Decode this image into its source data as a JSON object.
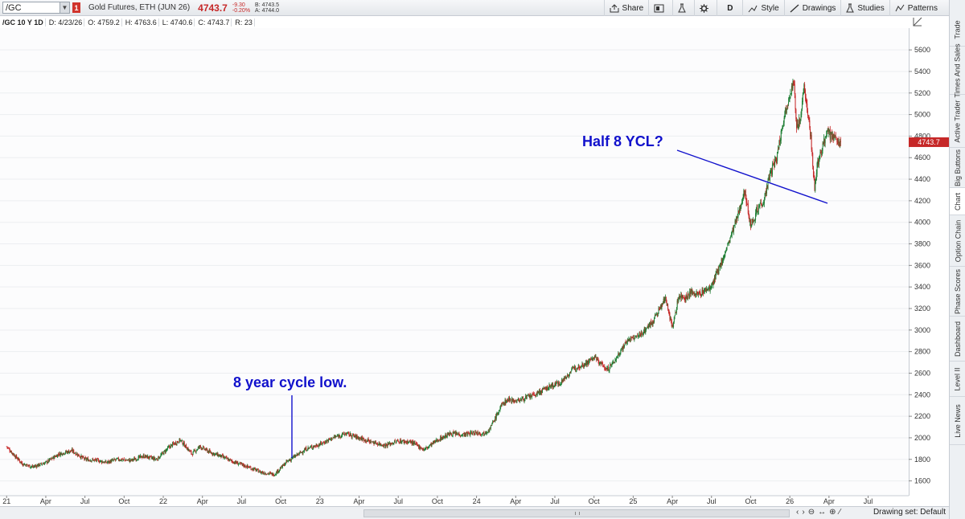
{
  "toolbar": {
    "symbol": "/GC",
    "link_badge": "1",
    "description": "Gold Futures, ETH (JUN 26)",
    "last_price": "4743.7",
    "net_change": "-9.30",
    "pct_change": "-0.20%",
    "bid": "B: 4743.5",
    "ask": "A: 4744.0",
    "buttons": {
      "share": "Share",
      "aggregation": "D",
      "style": "Style",
      "drawings": "Drawings",
      "studies": "Studies",
      "patterns": "Patterns"
    }
  },
  "info": {
    "label": "/GC 10 Y 1D",
    "date": "D: 4/23/26",
    "open": "O: 4759.2",
    "high": "H: 4763.6",
    "low": "L: 4740.6",
    "close": "C: 4743.7",
    "range": "R: 23"
  },
  "right_tabs": [
    "Trade",
    "Times And Sales",
    "Active Trader",
    "Big Buttons",
    "Chart",
    "Option Chain",
    "Phase Scores",
    "Dashboard",
    "Level II",
    "Live News"
  ],
  "active_tab": "Chart",
  "bottom": {
    "drawing_set": "Drawing set: Default"
  },
  "colors": {
    "up_candle": "#1e7e34",
    "down_candle": "#c62828",
    "annotation": "#1111cc",
    "grid": "#eceef1"
  },
  "chart_data": {
    "type": "candlestick",
    "title": "",
    "xlabel": "",
    "ylabel": "",
    "ylim": [
      1500,
      5750
    ],
    "y_ticks": [
      1600,
      1800,
      2000,
      2200,
      2400,
      2600,
      2800,
      3000,
      3200,
      3400,
      3600,
      3800,
      4000,
      4200,
      4400,
      4600,
      4800,
      5000,
      5200,
      5400,
      5600
    ],
    "x_tick_labels": [
      "21",
      "Apr",
      "Jul",
      "Oct",
      "22",
      "Apr",
      "Jul",
      "Oct",
      "23",
      "Apr",
      "Jul",
      "Oct",
      "24",
      "Apr",
      "Jul",
      "Oct",
      "25",
      "Apr",
      "Jul",
      "Oct",
      "26",
      "Apr",
      "Jul"
    ],
    "x_ticks_month_index": [
      0,
      3,
      6,
      9,
      12,
      15,
      18,
      21,
      24,
      27,
      30,
      33,
      36,
      39,
      42,
      45,
      48,
      51,
      54,
      57,
      60,
      63,
      66
    ],
    "x_range_months": [
      -0.2,
      68.8
    ],
    "series": [
      {
        "name": "",
        "x_months": [
          0.0,
          0.5,
          1.2,
          2.0,
          3.0,
          4.0,
          5.0,
          6.0,
          7.0,
          7.6,
          8.5,
          9.5,
          10.5,
          11.5,
          12.5,
          13.3,
          14.2,
          14.8,
          15.5,
          16.4,
          17.3,
          18.5,
          19.5,
          20.5,
          21.5,
          22.0,
          23.0,
          24.0,
          25.0,
          26.0,
          27.0,
          28.0,
          29.0,
          30.0,
          31.0,
          32.0,
          33.0,
          34.0,
          35.0,
          36.0,
          36.5,
          37.0,
          38.0,
          38.5,
          39.0,
          39.5,
          40.5,
          41.5,
          42.5,
          43.5,
          44.5,
          45.0,
          45.6,
          46.0,
          46.5,
          47.5,
          48.5,
          49.5,
          50.5,
          51.0,
          51.5,
          52.0,
          52.5,
          53.0,
          54.0,
          55.0,
          56.0,
          56.5,
          57.0,
          57.3,
          57.6,
          58.0,
          58.5,
          59.0,
          59.5,
          60.0,
          60.3,
          60.5,
          60.8,
          61.1,
          61.3,
          61.6,
          61.9,
          62.1,
          62.3,
          62.5,
          62.8,
          63.1,
          63.3,
          63.6,
          63.9
        ],
        "close": [
          1920,
          1850,
          1760,
          1730,
          1770,
          1850,
          1880,
          1800,
          1790,
          1770,
          1800,
          1790,
          1830,
          1800,
          1920,
          1980,
          1850,
          1920,
          1870,
          1830,
          1780,
          1730,
          1680,
          1660,
          1780,
          1820,
          1900,
          1940,
          2000,
          2040,
          2000,
          1960,
          1930,
          1970,
          1960,
          1890,
          1980,
          2040,
          2030,
          2050,
          2040,
          2080,
          2320,
          2360,
          2340,
          2360,
          2400,
          2470,
          2520,
          2650,
          2700,
          2750,
          2680,
          2630,
          2700,
          2900,
          2950,
          3080,
          3300,
          3020,
          3320,
          3300,
          3350,
          3330,
          3400,
          3700,
          4050,
          4300,
          3980,
          4050,
          4150,
          4200,
          4450,
          4600,
          4950,
          5200,
          5300,
          4900,
          4950,
          5250,
          5100,
          4800,
          4300,
          4550,
          4600,
          4700,
          4850,
          4800,
          4780,
          4760,
          4744
        ]
      }
    ],
    "annotations": [
      {
        "text": "8 year cycle low."
      },
      {
        "text": "Half 8 YCL?"
      }
    ]
  }
}
